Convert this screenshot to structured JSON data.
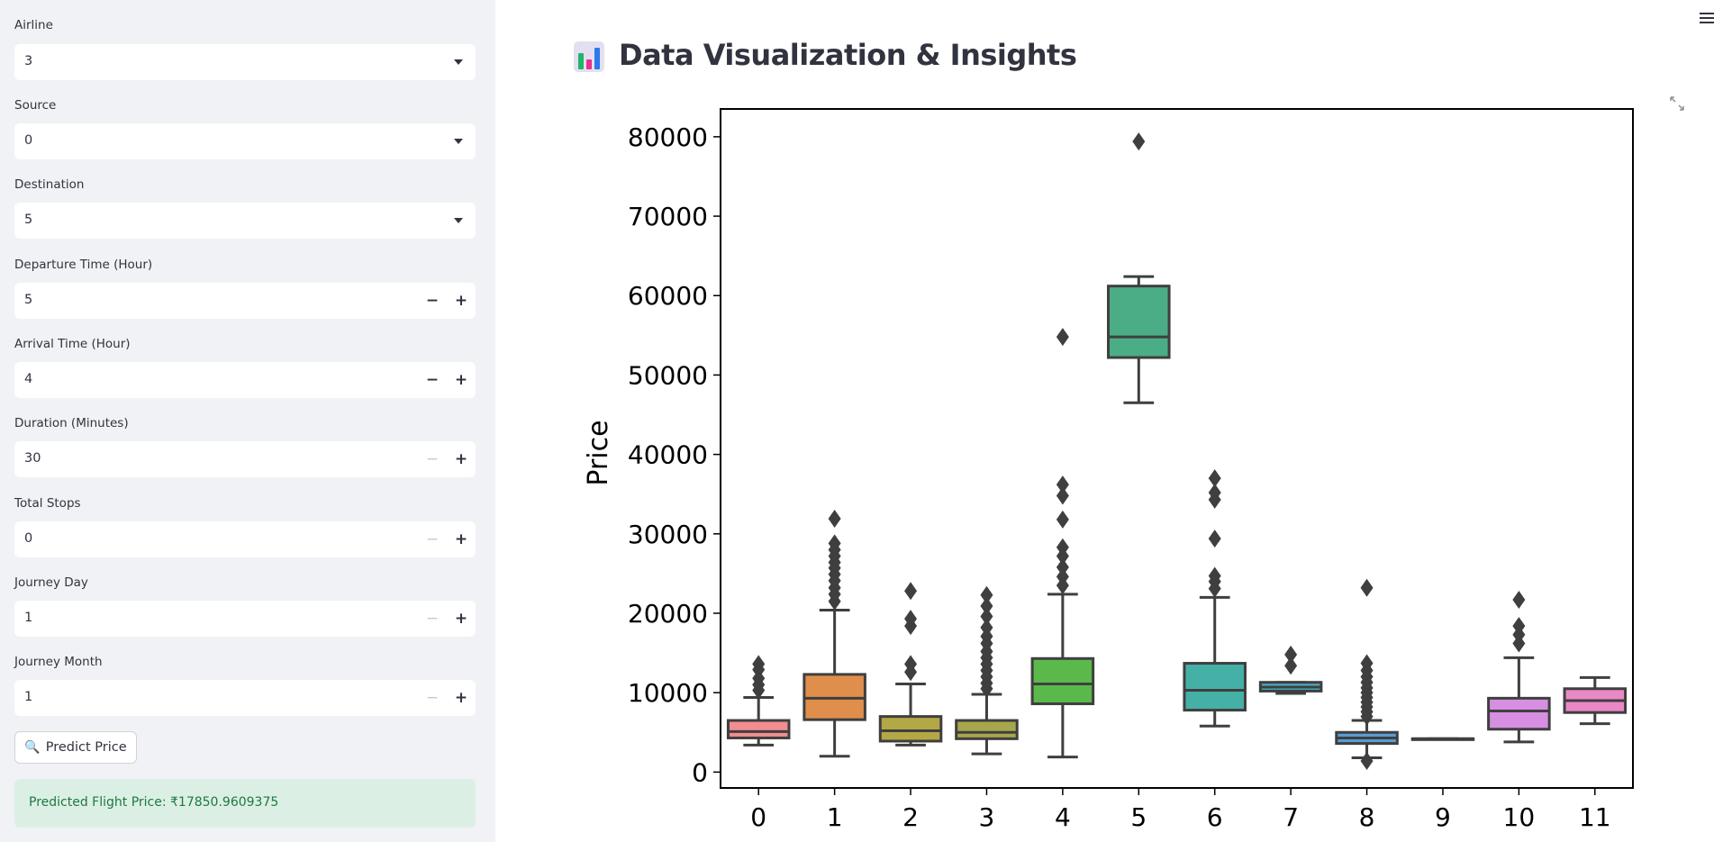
{
  "sidebar": {
    "selects": [
      {
        "label": "Airline",
        "value": "3"
      },
      {
        "label": "Source",
        "value": "0"
      },
      {
        "label": "Destination",
        "value": "5"
      }
    ],
    "numbers": [
      {
        "label": "Departure Time (Hour)",
        "value": "5"
      },
      {
        "label": "Arrival Time (Hour)",
        "value": "4"
      },
      {
        "label": "Duration (Minutes)",
        "value": "30"
      },
      {
        "label": "Total Stops",
        "value": "0"
      },
      {
        "label": "Journey Day",
        "value": "1"
      },
      {
        "label": "Journey Month",
        "value": "1"
      }
    ],
    "stepper_minus": "−",
    "stepper_plus": "+",
    "predict_button": {
      "icon": "🔍",
      "label": "Predict Price"
    },
    "result": "Predicted Flight Price: ₹17850.9609375"
  },
  "header": {
    "title": "Data Visualization & Insights",
    "title_icon": "bar-chart-icon"
  },
  "chart_data": {
    "type": "box",
    "ylabel": "Price",
    "xlabel": "",
    "ylim": [
      -2000,
      83500
    ],
    "yticks": [
      0,
      10000,
      20000,
      30000,
      40000,
      50000,
      60000,
      70000,
      80000
    ],
    "categories": [
      "0",
      "1",
      "2",
      "3",
      "4",
      "5",
      "6",
      "7",
      "8",
      "9",
      "10",
      "11"
    ],
    "boxes": [
      {
        "category": "0",
        "color": "#f08d8f",
        "min": 3400,
        "q1": 4300,
        "median": 5100,
        "q3": 6500,
        "max": 9400,
        "outliers": [
          10300,
          11000,
          11800,
          12900,
          13600
        ]
      },
      {
        "category": "1",
        "color": "#e08e4b",
        "min": 2000,
        "q1": 6600,
        "median": 9300,
        "q3": 12300,
        "max": 20400,
        "outliers": [
          21500,
          22400,
          23200,
          24100,
          24900,
          25700,
          26400,
          27200,
          28000,
          28800,
          31900
        ]
      },
      {
        "category": "2",
        "color": "#b4a746",
        "min": 3400,
        "q1": 3900,
        "median": 5200,
        "q3": 7000,
        "max": 11100,
        "outliers": [
          12600,
          13600,
          18400,
          19300,
          22800
        ]
      },
      {
        "category": "3",
        "color": "#a7a64d",
        "min": 2300,
        "q1": 4200,
        "median": 5000,
        "q3": 6500,
        "max": 9800,
        "outliers": [
          10500,
          11200,
          12000,
          12800,
          13600,
          14400,
          15200,
          16200,
          17100,
          18200,
          19600,
          20900,
          22300
        ]
      },
      {
        "category": "4",
        "color": "#5ab94a",
        "min": 1900,
        "q1": 8600,
        "median": 11100,
        "q3": 14300,
        "max": 22400,
        "outliers": [
          23500,
          24600,
          25800,
          27200,
          28300,
          31800,
          34800,
          36200,
          54800
        ]
      },
      {
        "category": "5",
        "color": "#4aad86",
        "min": 46500,
        "q1": 52200,
        "median": 54800,
        "q3": 61200,
        "max": 62400,
        "outliers": [
          79400
        ]
      },
      {
        "category": "6",
        "color": "#45b0a5",
        "min": 5800,
        "q1": 7800,
        "median": 10300,
        "q3": 13700,
        "max": 22000,
        "outliers": [
          23100,
          24000,
          24700,
          29400,
          34300,
          35200,
          37000
        ]
      },
      {
        "category": "7",
        "color": "#49a9c0",
        "min": 9900,
        "q1": 10200,
        "median": 10700,
        "q3": 11300,
        "max": 11300,
        "outliers": [
          13400,
          14800
        ]
      },
      {
        "category": "8",
        "color": "#5b9bd1",
        "min": 1800,
        "q1": 3600,
        "median": 4300,
        "q3": 5000,
        "max": 6500,
        "outliers": [
          1400,
          7000,
          7600,
          8200,
          8800,
          9400,
          10000,
          10600,
          11300,
          12000,
          12800,
          13700,
          23200
        ]
      },
      {
        "category": "9",
        "color": "#8b9ad9",
        "min": 4200,
        "q1": 4200,
        "median": 4200,
        "q3": 4200,
        "max": 4200,
        "outliers": []
      },
      {
        "category": "10",
        "color": "#d78fe2",
        "min": 3800,
        "q1": 5400,
        "median": 7700,
        "q3": 9300,
        "max": 14400,
        "outliers": [
          16200,
          17300,
          18400,
          21700
        ]
      },
      {
        "category": "11",
        "color": "#ea88c5",
        "min": 6100,
        "q1": 7500,
        "median": 9000,
        "q3": 10500,
        "max": 11900,
        "outliers": []
      }
    ]
  }
}
